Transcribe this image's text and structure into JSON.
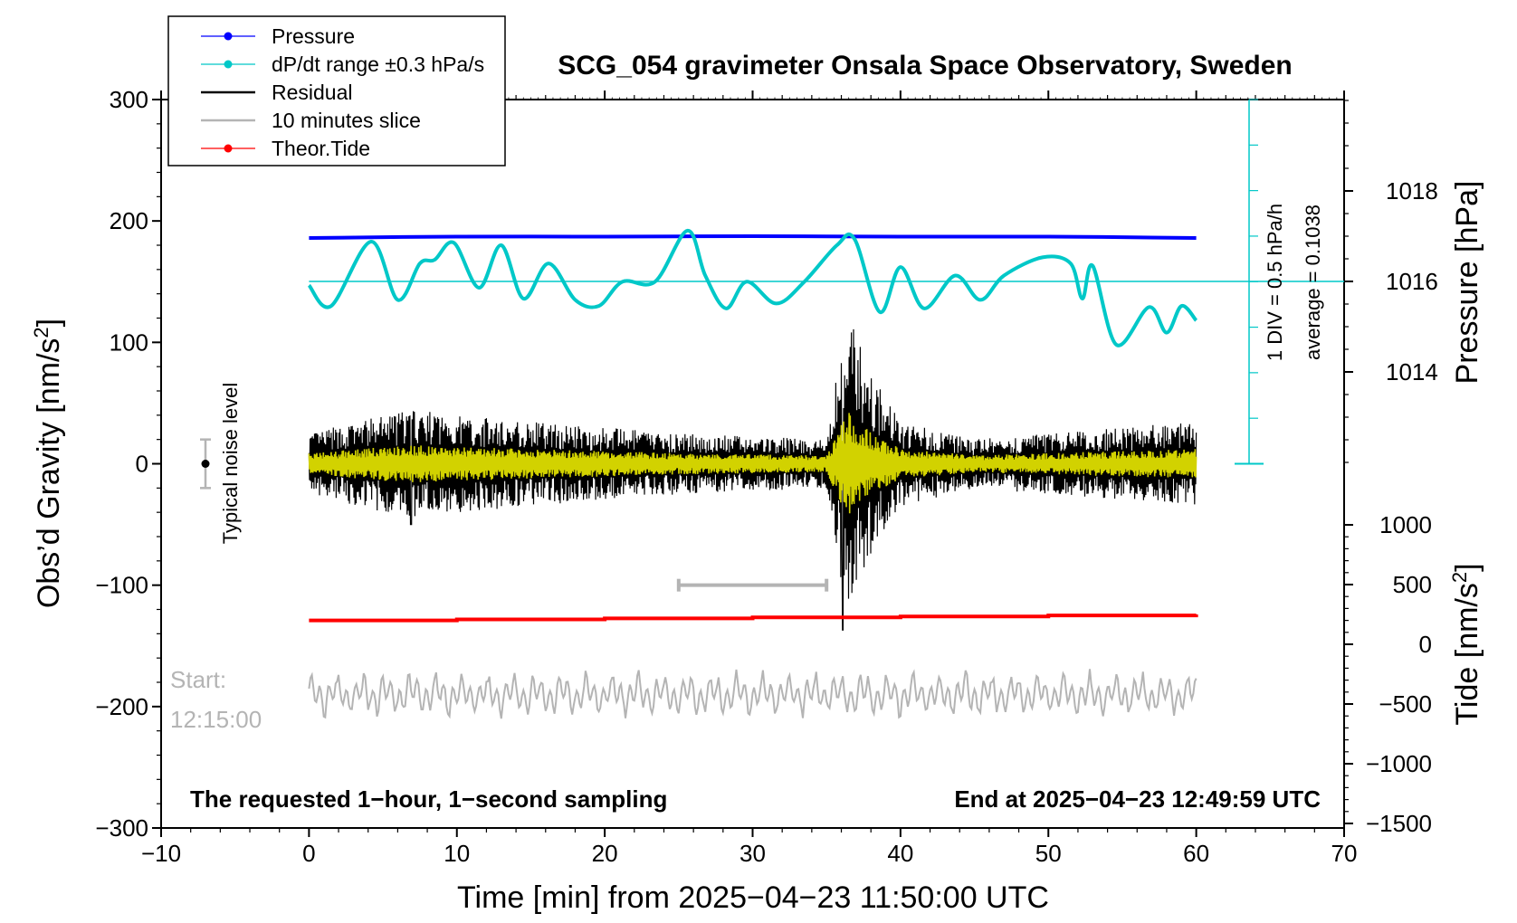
{
  "chart_data": {
    "type": "line",
    "title": "SCG_054 gravimeter Onsala Space Observatory, Sweden",
    "xlabel": "Time [min] from 2025−04−23 11:50:00 UTC",
    "ylabel_left_main": "Obs’d Gravity [nm/s",
    "ylabel_left_sup": "2",
    "ylabel_left_end": "]",
    "ylabel_right_top": "Pressure [hPa]",
    "ylabel_right_bottom_main": "Tide [nm/s",
    "ylabel_right_bottom_sup": "2",
    "ylabel_right_bottom_end": "]",
    "xlim": [
      -10,
      70
    ],
    "ylim": [
      -300,
      300
    ],
    "pressure_lim": [
      1012,
      1020
    ],
    "tide_lim": [
      -1500,
      1000
    ],
    "x_ticks": [
      -10,
      0,
      10,
      20,
      30,
      40,
      50,
      60,
      70
    ],
    "x_tick_labels": [
      "−10",
      "0",
      "10",
      "20",
      "30",
      "40",
      "50",
      "60",
      "70"
    ],
    "y_ticks": [
      -300,
      -200,
      -100,
      0,
      100,
      200,
      300
    ],
    "y_tick_labels": [
      "−300",
      "−200",
      "−100",
      "0",
      "100",
      "200",
      "300"
    ],
    "pressure_ticks": [
      1014,
      1016,
      1018
    ],
    "pressure_tick_labels": [
      "1014",
      "1016",
      "1018"
    ],
    "tide_ticks": [
      -1500,
      -1000,
      -500,
      0,
      500,
      1000
    ],
    "tide_tick_labels": [
      "−1500",
      "−1000",
      "−500",
      "0",
      "500",
      "1000"
    ],
    "legend_position": "top-left",
    "legend": [
      {
        "label": "Pressure",
        "color": "#0000ff",
        "marker": true
      },
      {
        "label": "dP/dt range ±0.3 hPa/s",
        "color": "#00c8c8",
        "marker": true
      },
      {
        "label": "Residual",
        "color": "#000000",
        "marker": false
      },
      {
        "label": "10 minutes slice",
        "color": "#b4b4b4",
        "marker": false
      },
      {
        "label": "Theor.Tide",
        "color": "#ff0000",
        "marker": true
      }
    ],
    "series": [
      {
        "name": "Pressure",
        "color": "#0000ff",
        "axis": "pressure",
        "x": [
          0,
          10,
          20,
          30,
          40,
          50,
          60
        ],
        "y": [
          1016.96,
          1016.99,
          1016.99,
          1017.0,
          1016.99,
          1016.99,
          1016.96
        ]
      },
      {
        "name": "dP/dt range ±0.3 hPa/s",
        "color": "#00c8c8",
        "axis": "left",
        "x": [
          0,
          1.5,
          4.2,
          6,
          7.5,
          8.5,
          9.8,
          11.5,
          13,
          14.5,
          16.2,
          18,
          19.6,
          21.2,
          23.4,
          25.6,
          26.8,
          28.2,
          29.6,
          31.6,
          33.5,
          35.7,
          36.9,
          38.6,
          40,
          41.6,
          43.7,
          45.4,
          47,
          49.6,
          51.5,
          52.3,
          53,
          54.6,
          56.8,
          58,
          59,
          60
        ],
        "y": [
          147,
          130,
          183,
          135,
          165,
          168,
          182,
          145,
          180,
          136,
          165,
          135,
          130,
          150,
          150,
          192,
          155,
          128,
          150,
          132,
          150,
          180,
          185,
          125,
          162,
          128,
          155,
          135,
          155,
          170,
          165,
          136,
          163,
          98,
          129,
          108,
          130,
          118
        ]
      },
      {
        "name": "Residual",
        "color": "#000000",
        "axis": "left",
        "envelope_x": [
          0,
          6.8,
          10,
          25,
          35,
          36,
          36.5,
          38,
          40,
          45,
          50,
          60
        ],
        "envelope_y": [
          25,
          45,
          40,
          25,
          20,
          100,
          122,
          75,
          35,
          20,
          25,
          35
        ],
        "min_value": -137
      },
      {
        "name": "10 minutes slice",
        "color": "#b4b4b4",
        "axis": "left",
        "x_range": [
          0,
          60
        ],
        "center": -190,
        "amplitude": 22
      },
      {
        "name": "Theor.Tide",
        "color": "#ff0000",
        "axis": "tide",
        "x": [
          0,
          60
        ],
        "y": [
          200,
          250
        ]
      }
    ],
    "pressure_reference_line": 1016,
    "slice_bracket_x": [
      25,
      35
    ],
    "slice_bracket_y": -100,
    "noise_marker": {
      "x": -7,
      "y": 0,
      "err": 20
    }
  },
  "annotations": {
    "bottom_left": "The requested 1−hour, 1−second sampling",
    "bottom_right": "End at 2025−04−23 12:49:59 UTC",
    "start_label": "Start:",
    "start_time": "12:15:00",
    "noise_label": "Typical noise level",
    "div_label": "1 DIV = 0.5 hPa/h",
    "avg_label": "average = 0.1038"
  }
}
